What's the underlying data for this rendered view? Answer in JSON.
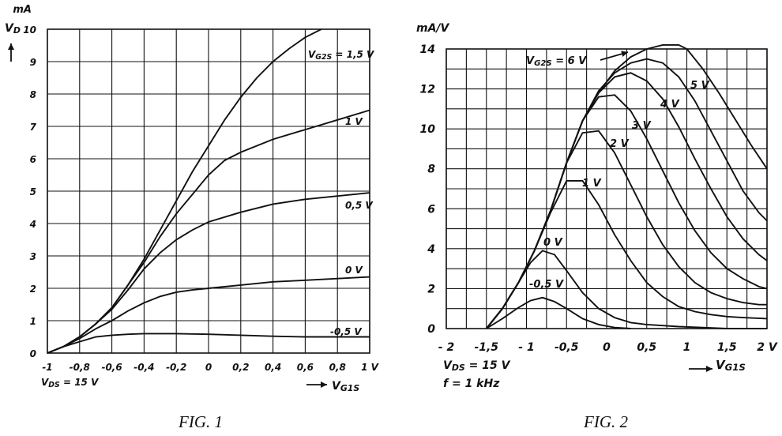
{
  "chart_data": [
    {
      "type": "line",
      "caption": "FIG. 1",
      "ylabel": "I_D",
      "yunit": "mA",
      "xlabel": "V_G1S",
      "xlim": [
        -1,
        1
      ],
      "ylim": [
        0,
        10
      ],
      "grid": true,
      "xticks": [
        -1,
        -0.8,
        -0.6,
        -0.4,
        -0.2,
        0,
        0.2,
        0.4,
        0.6,
        0.8,
        1
      ],
      "xtick_labels": [
        "-1",
        "-0,8",
        "-0,6",
        "-0,4",
        "-0,2",
        "0",
        "0,2",
        "0,4",
        "0,6",
        "0,8",
        "1 V"
      ],
      "yticks": [
        0,
        1,
        2,
        3,
        4,
        5,
        6,
        7,
        8,
        9,
        10
      ],
      "ytick_labels": [
        "0",
        "1",
        "2",
        "3",
        "4",
        "5",
        "6",
        "7",
        "8",
        "9",
        "10"
      ],
      "annotations": [
        "V_DS = 15 V"
      ],
      "series": [
        {
          "name": "V_G2S = 1,5 V",
          "x": [
            -1,
            -0.9,
            -0.8,
            -0.7,
            -0.6,
            -0.5,
            -0.4,
            -0.3,
            -0.2,
            -0.1,
            0,
            0.1,
            0.2,
            0.3,
            0.4,
            0.5,
            0.6,
            0.7
          ],
          "y": [
            0,
            0.2,
            0.5,
            0.9,
            1.4,
            2.1,
            2.9,
            3.8,
            4.7,
            5.6,
            6.4,
            7.2,
            7.9,
            8.5,
            9.0,
            9.4,
            9.75,
            10.0
          ]
        },
        {
          "name": "1 V",
          "x": [
            -1,
            -0.9,
            -0.8,
            -0.7,
            -0.6,
            -0.5,
            -0.4,
            -0.3,
            -0.2,
            -0.1,
            0,
            0.1,
            0.2,
            0.4,
            0.6,
            0.8,
            1.0
          ],
          "y": [
            0,
            0.2,
            0.5,
            0.9,
            1.4,
            2.1,
            2.8,
            3.6,
            4.3,
            4.9,
            5.5,
            5.95,
            6.2,
            6.6,
            6.9,
            7.2,
            7.5
          ]
        },
        {
          "name": "0,5 V",
          "x": [
            -1,
            -0.9,
            -0.8,
            -0.7,
            -0.6,
            -0.5,
            -0.4,
            -0.3,
            -0.2,
            -0.1,
            0,
            0.2,
            0.4,
            0.6,
            0.8,
            1.0
          ],
          "y": [
            0,
            0.2,
            0.5,
            0.9,
            1.35,
            1.95,
            2.6,
            3.1,
            3.5,
            3.8,
            4.05,
            4.35,
            4.6,
            4.75,
            4.85,
            4.95
          ]
        },
        {
          "name": "0 V",
          "x": [
            -1,
            -0.9,
            -0.8,
            -0.7,
            -0.6,
            -0.5,
            -0.4,
            -0.3,
            -0.2,
            -0.1,
            0,
            0.2,
            0.4,
            0.6,
            0.8,
            1.0
          ],
          "y": [
            0,
            0.2,
            0.45,
            0.75,
            1.0,
            1.3,
            1.55,
            1.75,
            1.88,
            1.95,
            2.0,
            2.1,
            2.2,
            2.25,
            2.3,
            2.35
          ]
        },
        {
          "name": "-0,5 V",
          "x": [
            -1,
            -0.9,
            -0.8,
            -0.7,
            -0.6,
            -0.5,
            -0.4,
            -0.2,
            0,
            0.2,
            0.4,
            0.6,
            0.8,
            1.0
          ],
          "y": [
            0,
            0.2,
            0.35,
            0.5,
            0.55,
            0.58,
            0.6,
            0.6,
            0.58,
            0.55,
            0.52,
            0.5,
            0.5,
            0.5
          ]
        }
      ]
    },
    {
      "type": "line",
      "caption": "FIG. 2",
      "ylabel": "",
      "yunit": "mA/V",
      "xlabel": "V_G1S",
      "xlim": [
        -2,
        2
      ],
      "ylim": [
        0,
        14
      ],
      "grid": true,
      "xticks": [
        -2,
        -1.5,
        -1,
        -0.5,
        0,
        0.5,
        1,
        1.5,
        2
      ],
      "xtick_labels": [
        "- 2",
        "-1,5",
        "- 1",
        "-0,5",
        "0",
        "0,5",
        "1",
        "1,5",
        "2 V"
      ],
      "yticks": [
        0,
        2,
        4,
        6,
        8,
        10,
        12,
        14
      ],
      "ytick_labels": [
        "0",
        "2",
        "4",
        "6",
        "8",
        "10",
        "12",
        "14"
      ],
      "annotations": [
        "V_DS = 15 V",
        "f = 1 kHz"
      ],
      "series": [
        {
          "name": "V_G2S = 6 V",
          "x": [
            -1.5,
            -1.3,
            -1.1,
            -0.9,
            -0.7,
            -0.5,
            -0.3,
            -0.1,
            0.1,
            0.3,
            0.5,
            0.7,
            0.9,
            1.0,
            1.2,
            1.4,
            1.6,
            1.8,
            2.0
          ],
          "y": [
            0,
            1.0,
            2.3,
            3.9,
            5.9,
            8.3,
            10.4,
            11.8,
            12.9,
            13.6,
            14.0,
            14.2,
            14.2,
            14.0,
            13.0,
            11.8,
            10.5,
            9.2,
            8.0
          ]
        },
        {
          "name": "5 V",
          "x": [
            -1.5,
            -1.3,
            -1.1,
            -0.9,
            -0.7,
            -0.5,
            -0.3,
            -0.1,
            0.1,
            0.3,
            0.5,
            0.7,
            0.9,
            1.1,
            1.3,
            1.5,
            1.7,
            1.9,
            2.0
          ],
          "y": [
            0,
            1.0,
            2.3,
            3.9,
            5.9,
            8.3,
            10.4,
            11.9,
            12.8,
            13.3,
            13.5,
            13.3,
            12.6,
            11.4,
            9.9,
            8.4,
            6.9,
            5.8,
            5.4
          ]
        },
        {
          "name": "4 V",
          "x": [
            -1.5,
            -1.3,
            -1.1,
            -0.9,
            -0.7,
            -0.5,
            -0.3,
            -0.1,
            0.1,
            0.3,
            0.5,
            0.7,
            0.9,
            1.1,
            1.3,
            1.5,
            1.7,
            1.9,
            2.0
          ],
          "y": [
            0,
            1.0,
            2.3,
            3.9,
            5.9,
            8.3,
            10.4,
            11.8,
            12.6,
            12.8,
            12.4,
            11.5,
            10.1,
            8.5,
            7.0,
            5.6,
            4.5,
            3.7,
            3.4
          ]
        },
        {
          "name": "3 V",
          "x": [
            -1.5,
            -1.3,
            -1.1,
            -0.9,
            -0.7,
            -0.5,
            -0.3,
            -0.1,
            0.1,
            0.3,
            0.5,
            0.7,
            0.9,
            1.1,
            1.3,
            1.5,
            1.7,
            1.9,
            2.0
          ],
          "y": [
            0,
            1.0,
            2.3,
            3.9,
            5.9,
            8.3,
            10.4,
            11.6,
            11.7,
            10.9,
            9.5,
            7.9,
            6.3,
            4.9,
            3.8,
            3.0,
            2.5,
            2.1,
            2.0
          ]
        },
        {
          "name": "2 V",
          "x": [
            -1.5,
            -1.3,
            -1.1,
            -0.9,
            -0.7,
            -0.5,
            -0.3,
            -0.1,
            0.1,
            0.3,
            0.5,
            0.7,
            0.9,
            1.1,
            1.3,
            1.5,
            1.7,
            1.9,
            2.0
          ],
          "y": [
            0,
            1.0,
            2.3,
            3.9,
            5.9,
            8.3,
            9.8,
            9.9,
            8.8,
            7.2,
            5.6,
            4.2,
            3.1,
            2.3,
            1.8,
            1.5,
            1.3,
            1.2,
            1.2
          ]
        },
        {
          "name": "1 V",
          "x": [
            -1.5,
            -1.3,
            -1.1,
            -0.9,
            -0.7,
            -0.5,
            -0.3,
            -0.1,
            0.1,
            0.3,
            0.5,
            0.7,
            0.9,
            1.1,
            1.3,
            1.5,
            1.7,
            2.0
          ],
          "y": [
            0,
            1.0,
            2.3,
            3.9,
            5.8,
            7.4,
            7.4,
            6.2,
            4.7,
            3.4,
            2.3,
            1.6,
            1.1,
            0.85,
            0.7,
            0.6,
            0.55,
            0.5
          ]
        },
        {
          "name": "0 V",
          "x": [
            -1.5,
            -1.3,
            -1.1,
            -0.95,
            -0.8,
            -0.65,
            -0.5,
            -0.3,
            -0.1,
            0.1,
            0.3,
            0.5,
            0.7,
            0.9,
            1.2,
            1.5,
            2.0
          ],
          "y": [
            0,
            1.0,
            2.3,
            3.3,
            3.9,
            3.7,
            2.9,
            1.8,
            1.0,
            0.55,
            0.3,
            0.2,
            0.15,
            0.1,
            0.05,
            0,
            0
          ]
        },
        {
          "name": "-0,5 V",
          "x": [
            -1.5,
            -1.3,
            -1.1,
            -0.95,
            -0.8,
            -0.65,
            -0.5,
            -0.3,
            -0.1,
            0.1,
            0.3
          ],
          "y": [
            0,
            0.5,
            1.05,
            1.4,
            1.55,
            1.35,
            1.0,
            0.5,
            0.2,
            0.05,
            0
          ]
        }
      ]
    }
  ]
}
